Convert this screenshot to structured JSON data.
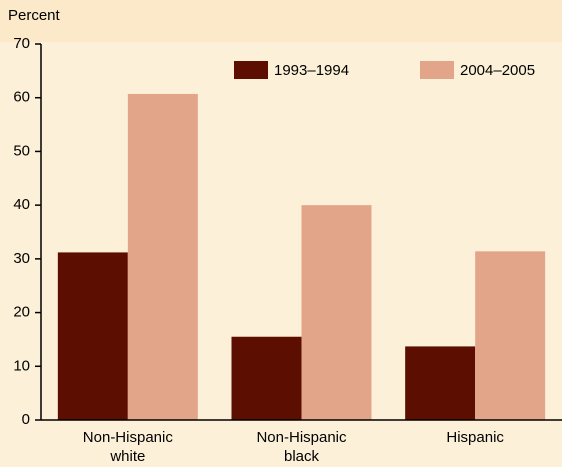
{
  "chart_data": {
    "type": "bar",
    "ylabel": "Percent",
    "categories": [
      "Non-Hispanic white",
      "Non-Hispanic black",
      "Hispanic"
    ],
    "series": [
      {
        "name": "1993–1994",
        "color": "#5c0e00",
        "values": [
          31.2,
          15.5,
          13.7
        ]
      },
      {
        "name": "2004–2005",
        "color": "#e3a58a",
        "values": [
          60.7,
          40.0,
          31.4
        ]
      }
    ],
    "ylim": [
      0,
      70
    ],
    "yticks": [
      0,
      10,
      20,
      30,
      40,
      50,
      60,
      70
    ]
  }
}
